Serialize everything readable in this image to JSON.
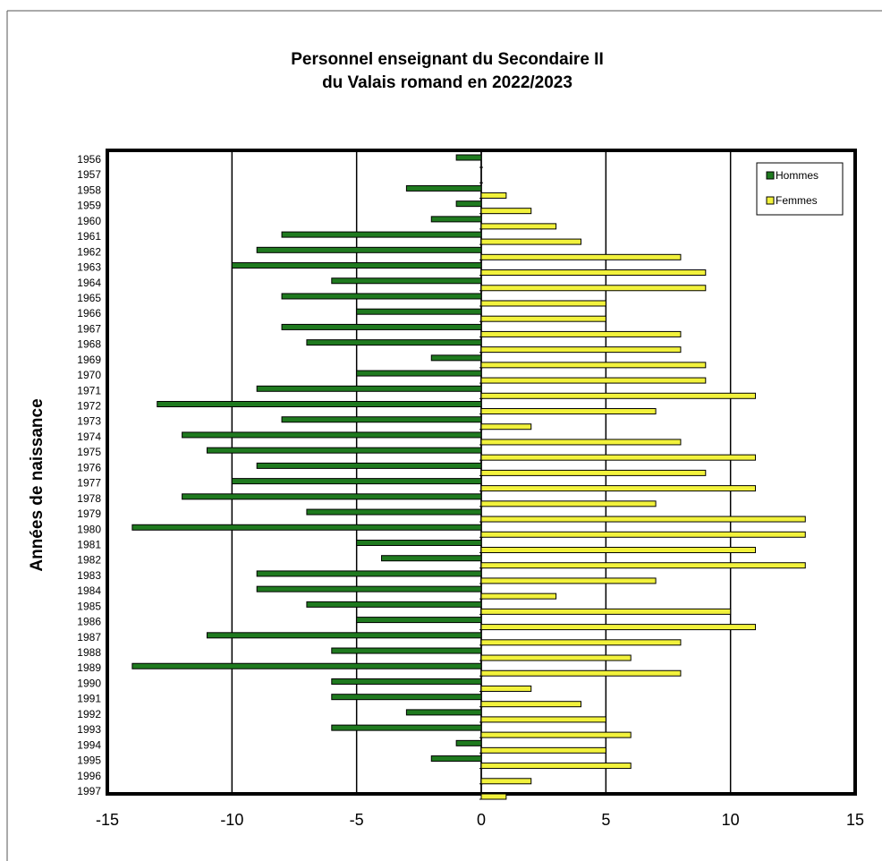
{
  "chart_data": {
    "type": "bar",
    "orientation": "horizontal",
    "title_line1": "Personnel enseignant du Secondaire II",
    "title_line2": "du Valais romand en 2022/2023",
    "xlabel": "",
    "ylabel": "Années de naissance",
    "xlim": [
      -15,
      15
    ],
    "xticks": [
      -15,
      -10,
      -5,
      0,
      5,
      10,
      15
    ],
    "grid": true,
    "legend_position": "top-right",
    "categories": [
      "1956",
      "1957",
      "1958",
      "1959",
      "1960",
      "1961",
      "1962",
      "1963",
      "1964",
      "1965",
      "1966",
      "1967",
      "1968",
      "1969",
      "1970",
      "1971",
      "1972",
      "1973",
      "1974",
      "1975",
      "1976",
      "1977",
      "1978",
      "1979",
      "1980",
      "1981",
      "1982",
      "1983",
      "1984",
      "1985",
      "1986",
      "1987",
      "1988",
      "1989",
      "1990",
      "1991",
      "1992",
      "1993",
      "1994",
      "1995",
      "1996",
      "1997"
    ],
    "series": [
      {
        "name": "Hommes",
        "color": "#1f7a1f",
        "values": [
          -1,
          0,
          -3,
          -1,
          -2,
          -8,
          -9,
          -10,
          -6,
          -8,
          -5,
          -8,
          -7,
          -2,
          -5,
          -9,
          -13,
          -8,
          -12,
          -11,
          -9,
          -10,
          -12,
          -7,
          -14,
          -5,
          -4,
          -9,
          -9,
          -7,
          -5,
          -11,
          -6,
          -14,
          -6,
          -6,
          -3,
          -6,
          -1,
          -2,
          0,
          0
        ]
      },
      {
        "name": "Femmes",
        "color": "#f2f23c",
        "values": [
          0,
          0,
          1,
          2,
          3,
          4,
          8,
          9,
          9,
          5,
          5,
          8,
          8,
          9,
          9,
          11,
          7,
          2,
          8,
          11,
          9,
          11,
          7,
          13,
          13,
          11,
          13,
          7,
          3,
          10,
          11,
          8,
          6,
          8,
          2,
          4,
          5,
          6,
          5,
          6,
          2,
          1
        ]
      }
    ]
  }
}
